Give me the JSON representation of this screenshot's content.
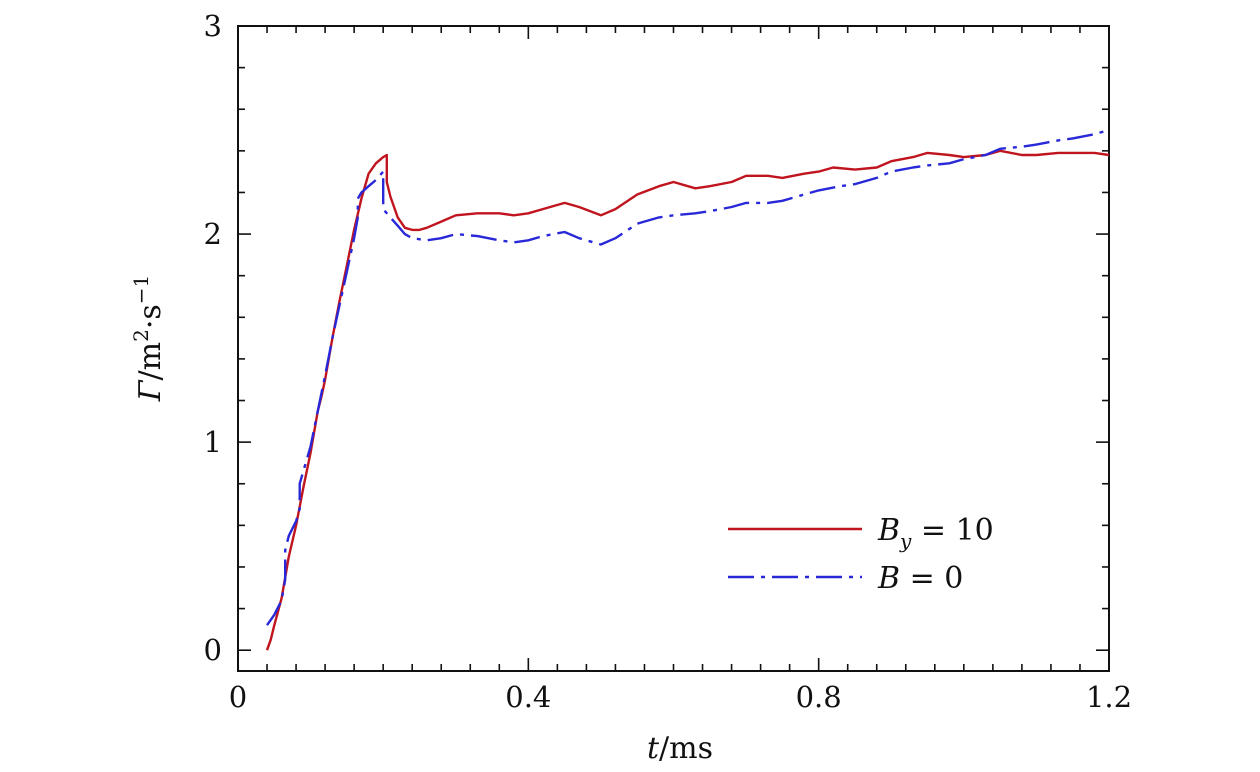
{
  "chart_data": {
    "type": "line",
    "xlabel": "t/ms",
    "ylabel": "Γ/m²·s⁻¹",
    "xlim": [
      0,
      1.2
    ],
    "ylim": [
      -0.1,
      3.0
    ],
    "xticks": [
      0,
      0.4,
      0.8,
      1.2
    ],
    "xtick_labels": [
      "0",
      "0.4",
      "0.8",
      "1.2"
    ],
    "yticks": [
      0,
      1,
      2,
      3
    ],
    "ytick_labels": [
      "0",
      "1",
      "2",
      "3"
    ],
    "grid": false,
    "legend_position": "bottom-right",
    "series": [
      {
        "name": "B_y = 10",
        "color": "#c0141e",
        "style": "solid",
        "x": [
          0.04,
          0.045,
          0.05,
          0.06,
          0.07,
          0.08,
          0.09,
          0.1,
          0.11,
          0.115,
          0.12,
          0.13,
          0.14,
          0.15,
          0.16,
          0.17,
          0.18,
          0.19,
          0.2,
          0.205,
          0.205,
          0.21,
          0.22,
          0.23,
          0.24,
          0.25,
          0.26,
          0.28,
          0.3,
          0.33,
          0.36,
          0.38,
          0.4,
          0.42,
          0.45,
          0.47,
          0.5,
          0.52,
          0.55,
          0.58,
          0.6,
          0.63,
          0.65,
          0.68,
          0.7,
          0.73,
          0.75,
          0.78,
          0.8,
          0.82,
          0.85,
          0.88,
          0.9,
          0.93,
          0.95,
          0.98,
          1.0,
          1.03,
          1.05,
          1.08,
          1.1,
          1.13,
          1.15,
          1.18,
          1.2
        ],
        "y": [
          0.0,
          0.05,
          0.12,
          0.25,
          0.45,
          0.6,
          0.78,
          0.95,
          1.15,
          1.22,
          1.3,
          1.5,
          1.68,
          1.85,
          2.02,
          2.17,
          2.29,
          2.34,
          2.37,
          2.38,
          2.25,
          2.18,
          2.08,
          2.03,
          2.02,
          2.02,
          2.03,
          2.06,
          2.09,
          2.1,
          2.1,
          2.09,
          2.1,
          2.12,
          2.15,
          2.13,
          2.09,
          2.12,
          2.19,
          2.23,
          2.25,
          2.22,
          2.23,
          2.25,
          2.28,
          2.28,
          2.27,
          2.29,
          2.3,
          2.32,
          2.31,
          2.32,
          2.35,
          2.37,
          2.39,
          2.38,
          2.37,
          2.38,
          2.4,
          2.38,
          2.38,
          2.39,
          2.39,
          2.39,
          2.38
        ]
      },
      {
        "name": "B = 0",
        "color": "#2828d8",
        "style": "dash-dot",
        "x": [
          0.04,
          0.05,
          0.06,
          0.065,
          0.065,
          0.07,
          0.08,
          0.085,
          0.085,
          0.09,
          0.1,
          0.11,
          0.12,
          0.13,
          0.14,
          0.15,
          0.16,
          0.165,
          0.165,
          0.17,
          0.18,
          0.19,
          0.2,
          0.2,
          0.205,
          0.21,
          0.22,
          0.23,
          0.24,
          0.26,
          0.28,
          0.3,
          0.33,
          0.36,
          0.38,
          0.4,
          0.42,
          0.45,
          0.47,
          0.5,
          0.52,
          0.55,
          0.58,
          0.6,
          0.63,
          0.65,
          0.68,
          0.7,
          0.73,
          0.75,
          0.78,
          0.8,
          0.83,
          0.85,
          0.88,
          0.9,
          0.93,
          0.95,
          0.98,
          1.0,
          1.03,
          1.05,
          1.08,
          1.1,
          1.13,
          1.15,
          1.18,
          1.2
        ],
        "y": [
          0.12,
          0.17,
          0.24,
          0.34,
          0.48,
          0.55,
          0.62,
          0.68,
          0.8,
          0.86,
          0.98,
          1.15,
          1.32,
          1.5,
          1.66,
          1.82,
          1.98,
          2.08,
          2.17,
          2.2,
          2.23,
          2.26,
          2.3,
          2.12,
          2.1,
          2.08,
          2.04,
          2.0,
          1.98,
          1.97,
          1.98,
          2.0,
          1.99,
          1.97,
          1.96,
          1.97,
          1.99,
          2.01,
          1.98,
          1.95,
          1.98,
          2.05,
          2.08,
          2.09,
          2.1,
          2.11,
          2.13,
          2.15,
          2.15,
          2.16,
          2.19,
          2.21,
          2.23,
          2.24,
          2.27,
          2.3,
          2.32,
          2.33,
          2.34,
          2.36,
          2.38,
          2.41,
          2.42,
          2.43,
          2.45,
          2.46,
          2.48,
          2.5
        ]
      }
    ]
  },
  "legend": {
    "entry1": {
      "var": "B",
      "sub": "y",
      "rest": " = 10"
    },
    "entry2": {
      "var": "B",
      "rest": " = 0"
    }
  },
  "axis_titles": {
    "x_var": "t",
    "x_unit": "/ms",
    "y_var": "Γ",
    "y_unit_a": "/m",
    "y_sup_a": "2",
    "y_unit_b": "·s",
    "y_sup_b": "−1"
  }
}
